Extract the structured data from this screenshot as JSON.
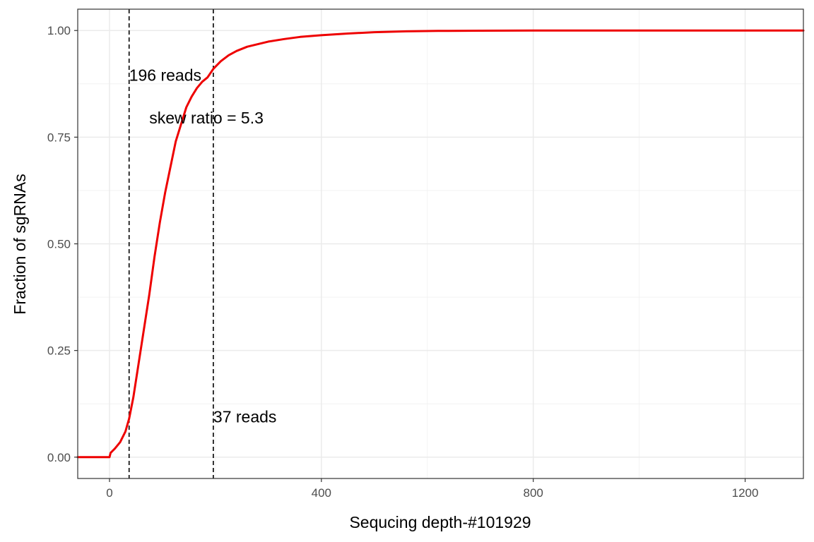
{
  "chart_data": {
    "type": "line",
    "xlabel": "Sequcing depth-#101929",
    "ylabel": "Fraction of sgRNAs",
    "xlim": [
      -60,
      1310
    ],
    "ylim": [
      -0.05,
      1.05
    ],
    "x_ticks": [
      0,
      400,
      800,
      1200
    ],
    "x_tick_labels": [
      "0",
      "400",
      "800",
      "1200"
    ],
    "x_minor_ticks": [
      200,
      600,
      1000
    ],
    "y_ticks": [
      0,
      0.25,
      0.5,
      0.75,
      1.0
    ],
    "y_tick_labels": [
      "0.00",
      "0.25",
      "0.50",
      "0.75",
      "1.00"
    ],
    "y_minor_ticks": [
      0.125,
      0.375,
      0.625,
      0.875
    ],
    "grid": true,
    "legend": "none",
    "series": [
      {
        "color": "#ee0000",
        "x": [
          -60,
          0,
          2,
          10,
          20,
          30,
          37,
          45,
          55,
          65,
          75,
          85,
          95,
          105,
          115,
          125,
          135,
          145,
          155,
          165,
          175,
          185,
          196,
          210,
          225,
          240,
          260,
          280,
          300,
          330,
          360,
          400,
          450,
          500,
          560,
          620,
          700,
          800,
          900,
          1000,
          1100,
          1200,
          1310
        ],
        "y": [
          0,
          0,
          0.01,
          0.02,
          0.035,
          0.06,
          0.09,
          0.14,
          0.22,
          0.3,
          0.38,
          0.47,
          0.55,
          0.62,
          0.68,
          0.74,
          0.78,
          0.82,
          0.845,
          0.865,
          0.88,
          0.89,
          0.91,
          0.928,
          0.942,
          0.952,
          0.962,
          0.968,
          0.974,
          0.98,
          0.985,
          0.989,
          0.993,
          0.996,
          0.998,
          0.999,
          0.9995,
          1.0,
          1.0,
          1.0,
          1.0,
          1.0,
          1.0
        ]
      }
    ],
    "vlines": [
      {
        "x": 37,
        "style": "dashed"
      },
      {
        "x": 196,
        "style": "dashed"
      }
    ],
    "annotations": [
      {
        "text": "196 reads",
        "x": 37,
        "y": 0.895
      },
      {
        "text": "skew ratio = 5.3",
        "x": 75,
        "y": 0.795
      },
      {
        "text": "37 reads",
        "x": 196,
        "y": 0.095
      }
    ]
  }
}
